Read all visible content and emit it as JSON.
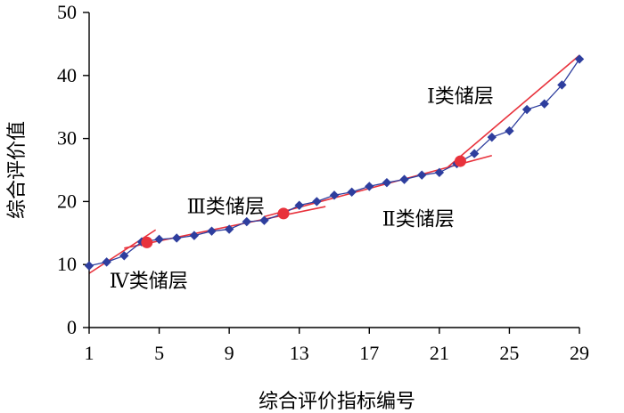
{
  "chart_data": {
    "type": "scatter",
    "xlabel": "综合评价指标编号",
    "ylabel": "综合评价值",
    "xlim": [
      1,
      29
    ],
    "ylim": [
      0,
      50
    ],
    "x_ticks": [
      "1",
      "5",
      "9",
      "13",
      "17",
      "21",
      "25",
      "29"
    ],
    "y_ticks": [
      "0",
      "10",
      "20",
      "30",
      "40",
      "50"
    ],
    "grid": false,
    "series": [
      {
        "marker": "diamond",
        "color": "#2E3E9E",
        "x": [
          1,
          2,
          3,
          4,
          5,
          6,
          7,
          8,
          9,
          10,
          11,
          12,
          13,
          14,
          15,
          16,
          17,
          18,
          19,
          20,
          21,
          22,
          23,
          24,
          25,
          26,
          27,
          28,
          29
        ],
        "y": [
          9.8,
          10.4,
          11.4,
          13.6,
          14.0,
          14.2,
          14.6,
          15.3,
          15.6,
          16.8,
          17.0,
          18.0,
          19.4,
          20.0,
          21.0,
          21.5,
          22.4,
          23.0,
          23.5,
          24.2,
          24.6,
          26.0,
          27.6,
          30.2,
          31.2,
          34.6,
          35.5,
          38.5,
          42.6
        ]
      }
    ],
    "breakpoints": {
      "color": "#E8323C",
      "x": [
        4.3,
        12.1,
        22.2
      ],
      "y": [
        13.5,
        18.1,
        26.4
      ]
    },
    "fit_lines": {
      "color": "#E8323C",
      "segments": [
        {
          "x": [
            1,
            4.8
          ],
          "y": [
            8.6,
            15.5
          ]
        },
        {
          "x": [
            3,
            14.5
          ],
          "y": [
            12.6,
            19.2
          ]
        },
        {
          "x": [
            11,
            24
          ],
          "y": [
            17.6,
            27.3
          ]
        },
        {
          "x": [
            21.5,
            29
          ],
          "y": [
            25.5,
            43.2
          ]
        }
      ]
    },
    "annotations": [
      {
        "text": "Ⅰ类储层",
        "x": 22.2,
        "y": 36.8
      },
      {
        "text": "Ⅱ类储层",
        "x": 19.8,
        "y": 17.3
      },
      {
        "text": "Ⅲ类储层",
        "x": 8.8,
        "y": 19.3
      },
      {
        "text": "Ⅳ类储层",
        "x": 4.4,
        "y": 7.5
      }
    ]
  }
}
